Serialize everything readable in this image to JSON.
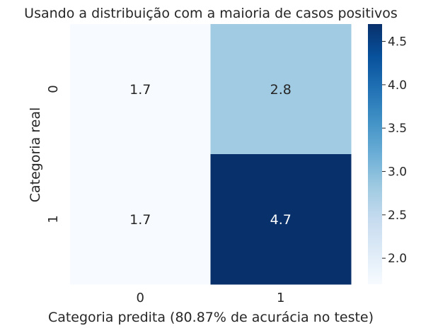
{
  "chart_data": {
    "type": "heatmap",
    "title": "Usando a distribuição com a maioria de casos positivos",
    "xlabel": "Categoria predita (80.87% de acurácia no teste)",
    "ylabel": "Categoria real",
    "x_categories": [
      "0",
      "1"
    ],
    "y_categories": [
      "0",
      "1"
    ],
    "values": [
      [
        1.7,
        2.8
      ],
      [
        1.7,
        4.7
      ]
    ],
    "annotations": [
      [
        "1.7",
        "2.8"
      ],
      [
        "1.7",
        "4.7"
      ]
    ],
    "colormap": "Blues",
    "colorbar": {
      "range": [
        1.7,
        4.7
      ],
      "ticks": [
        2.0,
        2.5,
        3.0,
        3.5,
        4.0,
        4.5
      ],
      "tick_labels": [
        "2.0",
        "2.5",
        "3.0",
        "3.5",
        "4.0",
        "4.5"
      ]
    },
    "grid": false
  },
  "colors": {
    "text_dark": "#262626",
    "text_light": "#ffffff"
  }
}
